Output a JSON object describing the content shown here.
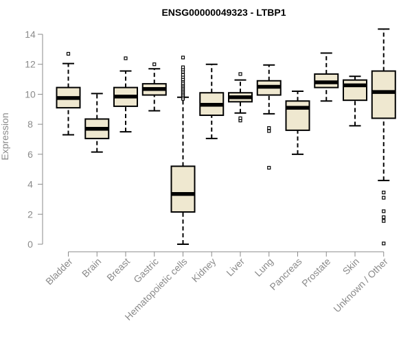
{
  "chart_data": {
    "type": "boxplot",
    "title": "ENSG00000049323 - LTBP1",
    "xlabel": "",
    "ylabel": "Expression",
    "ylim": [
      0,
      14
    ],
    "yticks": [
      0,
      2,
      4,
      6,
      8,
      10,
      12,
      14
    ],
    "grid": false,
    "colors": {
      "box_fill": "#efe8d0",
      "outline": "#000000",
      "axis": "#8a8a8a"
    },
    "categories": [
      "Bladder",
      "Brain",
      "Breast",
      "Gastric",
      "Hematopoietic cells",
      "Kidney",
      "Liver",
      "Lung",
      "Pancreas",
      "Prostate",
      "Skin",
      "Unknown / Other"
    ],
    "boxes": [
      {
        "label": "Bladder",
        "whisker_low": 7.3,
        "q1": 9.1,
        "median": 9.75,
        "q3": 10.45,
        "whisker_high": 12.05,
        "outliers": [
          12.7
        ]
      },
      {
        "label": "Brain",
        "whisker_low": 6.15,
        "q1": 7.05,
        "median": 7.7,
        "q3": 8.35,
        "whisker_high": 10.05,
        "outliers": []
      },
      {
        "label": "Breast",
        "whisker_low": 7.5,
        "q1": 9.2,
        "median": 9.85,
        "q3": 10.45,
        "whisker_high": 11.55,
        "outliers": [
          12.4
        ]
      },
      {
        "label": "Gastric",
        "whisker_low": 8.9,
        "q1": 9.95,
        "median": 10.35,
        "q3": 10.7,
        "whisker_high": 11.7,
        "outliers": [
          12.0
        ]
      },
      {
        "label": "Hematopoietic cells",
        "whisker_low": 0.0,
        "q1": 2.15,
        "median": 3.35,
        "q3": 5.2,
        "whisker_high": 9.8,
        "outliers": [
          9.7,
          9.85,
          9.95,
          10.05,
          10.15,
          10.25,
          10.35,
          10.45,
          10.55,
          10.65,
          10.75,
          10.9,
          11.0,
          11.15,
          11.3,
          11.5,
          11.65,
          11.8,
          12.45
        ]
      },
      {
        "label": "Kidney",
        "whisker_low": 7.05,
        "q1": 8.6,
        "median": 9.3,
        "q3": 10.1,
        "whisker_high": 12.0,
        "outliers": []
      },
      {
        "label": "Liver",
        "whisker_low": 8.75,
        "q1": 9.5,
        "median": 9.8,
        "q3": 10.1,
        "whisker_high": 10.95,
        "outliers": [
          8.25,
          8.4,
          11.35
        ]
      },
      {
        "label": "Lung",
        "whisker_low": 8.7,
        "q1": 9.95,
        "median": 10.5,
        "q3": 10.9,
        "whisker_high": 11.95,
        "outliers": [
          5.1,
          7.55,
          7.75
        ]
      },
      {
        "label": "Pancreas",
        "whisker_low": 6.0,
        "q1": 7.6,
        "median": 9.1,
        "q3": 9.55,
        "whisker_high": 10.2,
        "outliers": []
      },
      {
        "label": "Prostate",
        "whisker_low": 9.55,
        "q1": 10.45,
        "median": 10.8,
        "q3": 11.35,
        "whisker_high": 12.75,
        "outliers": []
      },
      {
        "label": "Skin",
        "whisker_low": 7.9,
        "q1": 9.6,
        "median": 10.6,
        "q3": 10.95,
        "whisker_high": 11.2,
        "outliers": []
      },
      {
        "label": "Unknown / Other",
        "whisker_low": 4.25,
        "q1": 8.4,
        "median": 10.15,
        "q3": 11.55,
        "whisker_high": 14.35,
        "outliers": [
          0.05,
          1.55,
          1.8,
          2.2,
          3.1,
          3.45
        ]
      }
    ]
  }
}
